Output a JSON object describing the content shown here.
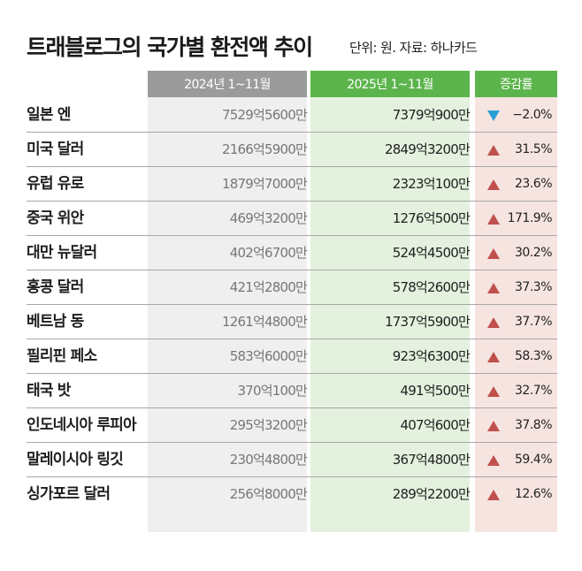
{
  "title": "트래블로그의 국가별 환전액 추이",
  "unit_note": "단위: 원. 자료: 하나카드",
  "headers": {
    "col_2024": "2024년 1~11월",
    "col_2025": "2025년 1~11월",
    "col_rate": "증감률"
  },
  "colors": {
    "header_gray": "#9b9b9b",
    "header_green": "#5cb54c",
    "up_arrow": "#c0504d",
    "down_arrow": "#2a9fd6"
  },
  "chart_data": {
    "type": "table",
    "columns": [
      "2024년 1~11월",
      "2025년 1~11월",
      "증감률"
    ],
    "rows": [
      {
        "country": "일본 엔",
        "v2024": "7529억5600만",
        "v2025": "7379억900만",
        "direction": "down",
        "rate": "−2.0%"
      },
      {
        "country": "미국 달러",
        "v2024": "2166억5900만",
        "v2025": "2849억3200만",
        "direction": "up",
        "rate": "31.5%"
      },
      {
        "country": "유럽 유로",
        "v2024": "1879억7000만",
        "v2025": "2323억100만",
        "direction": "up",
        "rate": "23.6%"
      },
      {
        "country": "중국 위안",
        "v2024": "469억3200만",
        "v2025": "1276억500만",
        "direction": "up",
        "rate": "171.9%"
      },
      {
        "country": "대만 뉴달러",
        "v2024": "402억6700만",
        "v2025": "524억4500만",
        "direction": "up",
        "rate": "30.2%"
      },
      {
        "country": "홍콩 달러",
        "v2024": "421억2800만",
        "v2025": "578억2600만",
        "direction": "up",
        "rate": "37.3%"
      },
      {
        "country": "베트남 동",
        "v2024": "1261억4800만",
        "v2025": "1737억5900만",
        "direction": "up",
        "rate": "37.7%"
      },
      {
        "country": "필리핀 페소",
        "v2024": "583억6000만",
        "v2025": "923억6300만",
        "direction": "up",
        "rate": "58.3%"
      },
      {
        "country": "태국 밧",
        "v2024": "370억100만",
        "v2025": "491억500만",
        "direction": "up",
        "rate": "32.7%"
      },
      {
        "country": "인도네시아 루피아",
        "v2024": "295억3200만",
        "v2025": "407억600만",
        "direction": "up",
        "rate": "37.8%"
      },
      {
        "country": "말레이시아 링깃",
        "v2024": "230억4800만",
        "v2025": "367억4800만",
        "direction": "up",
        "rate": "59.4%"
      },
      {
        "country": "싱가포르 달러",
        "v2024": "256억8000만",
        "v2025": "289억2200만",
        "direction": "up",
        "rate": "12.6%"
      }
    ]
  }
}
